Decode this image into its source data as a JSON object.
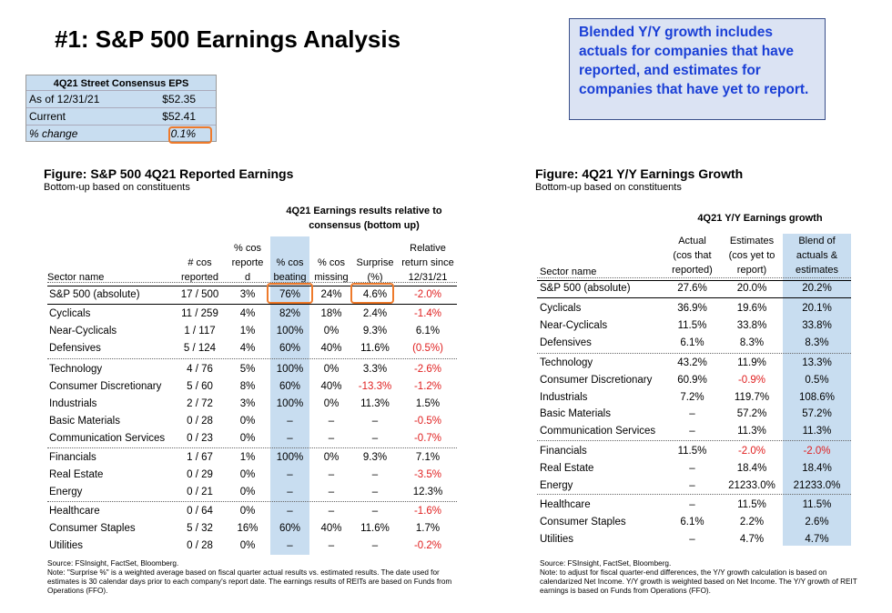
{
  "title": "#1: S&P 500 Earnings Analysis",
  "callout": "Blended Y/Y growth includes actuals for companies that have reported, and estimates for companies that have yet to report.",
  "eps": {
    "header": "4Q21 Street Consensus EPS",
    "rows": [
      {
        "label": "As of 12/31/21",
        "value": "$52.35"
      },
      {
        "label": "Current",
        "value": "$52.41"
      },
      {
        "label": "% change",
        "value": "0.1%"
      }
    ]
  },
  "left_figure": {
    "title": "Figure: S&P 500 4Q21 Reported Earnings",
    "subtitle": "Bottom-up based on constituents",
    "group_header": "4Q21 Earnings results relative to consensus (bottom up)",
    "columns": {
      "sector": "Sector name",
      "reported": [
        "# cos",
        "reported"
      ],
      "pct_reported": [
        "% cos",
        "reporte",
        "d"
      ],
      "beating": [
        "% cos",
        "beating"
      ],
      "missing": [
        "% cos",
        "missing"
      ],
      "surprise": [
        "Surprise",
        "(%)"
      ],
      "return": [
        "Relative",
        "return since",
        "12/31/21"
      ]
    },
    "rows": [
      [
        "S&P 500 (absolute)",
        "17 / 500",
        "3%",
        "76%",
        "24%",
        "4.6%",
        "-2.0%"
      ],
      [
        "Cyclicals",
        "11 / 259",
        "4%",
        "82%",
        "18%",
        "2.4%",
        "-1.4%"
      ],
      [
        "Near-Cyclicals",
        "1 / 117",
        "1%",
        "100%",
        "0%",
        "9.3%",
        "6.1%"
      ],
      [
        "Defensives",
        "5 / 124",
        "4%",
        "60%",
        "40%",
        "11.6%",
        "(0.5%)"
      ],
      [
        "Technology",
        "4 / 76",
        "5%",
        "100%",
        "0%",
        "3.3%",
        "-2.6%"
      ],
      [
        "Consumer Discretionary",
        "5 / 60",
        "8%",
        "60%",
        "40%",
        "-13.3%",
        "-1.2%"
      ],
      [
        "Industrials",
        "2 / 72",
        "3%",
        "100%",
        "0%",
        "11.3%",
        "1.5%"
      ],
      [
        "Basic Materials",
        "0 / 28",
        "0%",
        "–",
        "–",
        "–",
        "-0.5%"
      ],
      [
        "Communication Services",
        "0 / 23",
        "0%",
        "–",
        "–",
        "–",
        "-0.7%"
      ],
      [
        "Financials",
        "1 / 67",
        "1%",
        "100%",
        "0%",
        "9.3%",
        "7.1%"
      ],
      [
        "Real Estate",
        "0 / 29",
        "0%",
        "–",
        "–",
        "–",
        "-3.5%"
      ],
      [
        "Energy",
        "0 / 21",
        "0%",
        "–",
        "–",
        "–",
        "12.3%"
      ],
      [
        "Healthcare",
        "0 / 64",
        "0%",
        "–",
        "–",
        "–",
        "-1.6%"
      ],
      [
        "Consumer Staples",
        "5 / 32",
        "16%",
        "60%",
        "40%",
        "11.6%",
        "1.7%"
      ],
      [
        "Utilities",
        "0 / 28",
        "0%",
        "–",
        "–",
        "–",
        "-0.2%"
      ]
    ],
    "source": "Source: FSInsight, FactSet, Bloomberg.",
    "note": "Note: \"Surprise %\" is a weighted average based on fiscal quarter actual results vs. estimated results.  The date used for estimates is 30 calendar days prior to each company's report date. The earnings results of REITs are based on Funds from Operations (FFO)."
  },
  "right_figure": {
    "title": "Figure: 4Q21 Y/Y Earnings Growth",
    "subtitle": "Bottom-up based on constituents",
    "group_header": "4Q21 Y/Y Earnings growth",
    "columns": {
      "sector": "Sector name",
      "actual": [
        "Actual",
        "(cos that",
        "reported)"
      ],
      "estimates": [
        "Estimates",
        "(cos yet to",
        "report)"
      ],
      "blend": [
        "Blend of",
        "actuals &",
        "estimates"
      ]
    },
    "rows": [
      [
        "S&P 500 (absolute)",
        "27.6%",
        "20.0%",
        "20.2%"
      ],
      [
        "Cyclicals",
        "36.9%",
        "19.6%",
        "20.1%"
      ],
      [
        "Near-Cyclicals",
        "11.5%",
        "33.8%",
        "33.8%"
      ],
      [
        "Defensives",
        "6.1%",
        "8.3%",
        "8.3%"
      ],
      [
        "Technology",
        "43.2%",
        "11.9%",
        "13.3%"
      ],
      [
        "Consumer Discretionary",
        "60.9%",
        "-0.9%",
        "0.5%"
      ],
      [
        "Industrials",
        "7.2%",
        "119.7%",
        "108.6%"
      ],
      [
        "Basic Materials",
        "–",
        "57.2%",
        "57.2%"
      ],
      [
        "Communication Services",
        "–",
        "11.3%",
        "11.3%"
      ],
      [
        "Financials",
        "11.5%",
        "-2.0%",
        "-2.0%"
      ],
      [
        "Real Estate",
        "–",
        "18.4%",
        "18.4%"
      ],
      [
        "Energy",
        "–",
        "21233.0%",
        "21233.0%"
      ],
      [
        "Healthcare",
        "–",
        "11.5%",
        "11.5%"
      ],
      [
        "Consumer Staples",
        "6.1%",
        "2.2%",
        "2.6%"
      ],
      [
        "Utilities",
        "–",
        "4.7%",
        "4.7%"
      ]
    ],
    "source": "Source: FSInsight, FactSet, Bloomberg.",
    "note": "Note: to adjust for fiscal quarter-end differences, the Y/Y growth calculation is based on calendarized Net Income. Y/Y growth is weighted based on Net Income. The Y/Y growth of REIT earnings is based on Funds from Operations (FFO)."
  },
  "colors": {
    "highlight_band": "#c8ddf0",
    "highlight_box": "#ee7a2b",
    "negative": "#e02020",
    "callout_text": "#1a3fd6"
  }
}
